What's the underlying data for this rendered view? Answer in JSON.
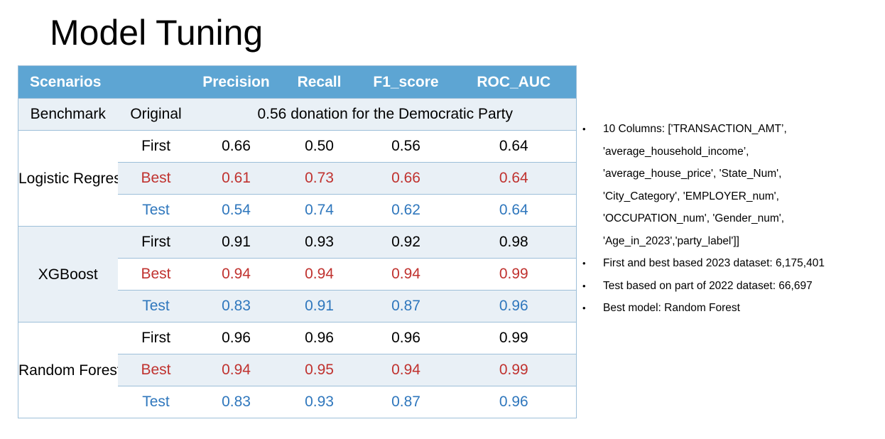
{
  "title": "Model Tuning",
  "table": {
    "headers": [
      "Scenarios",
      "",
      "Precision",
      "Recall",
      "F1_score",
      "ROC_AUC"
    ],
    "benchmark": {
      "label": "Benchmark",
      "sub": "Original",
      "text": "0.56 donation for the Democratic Party"
    },
    "groups": [
      {
        "name": "Logistic Regression",
        "rows": [
          {
            "label": "First",
            "precision": "0.66",
            "recall": "0.50",
            "f1": "0.56",
            "roc": "0.64"
          },
          {
            "label": "Best",
            "precision": "0.61",
            "recall": "0.73",
            "f1": "0.66",
            "roc": "0.64"
          },
          {
            "label": "Test",
            "precision": "0.54",
            "recall": "0.74",
            "f1": "0.62",
            "roc": "0.64"
          }
        ]
      },
      {
        "name": "XGBoost",
        "rows": [
          {
            "label": "First",
            "precision": "0.91",
            "recall": "0.93",
            "f1": "0.92",
            "roc": "0.98"
          },
          {
            "label": "Best",
            "precision": "0.94",
            "recall": "0.94",
            "f1": "0.94",
            "roc": "0.99"
          },
          {
            "label": "Test",
            "precision": "0.83",
            "recall": "0.91",
            "f1": "0.87",
            "roc": "0.96"
          }
        ]
      },
      {
        "name": "Random Forest",
        "rows": [
          {
            "label": "First",
            "precision": "0.96",
            "recall": "0.96",
            "f1": "0.96",
            "roc": "0.99"
          },
          {
            "label": "Best",
            "precision": "0.94",
            "recall": "0.95",
            "f1": "0.94",
            "roc": "0.99"
          },
          {
            "label": "Test",
            "precision": "0.83",
            "recall": "0.93",
            "f1": "0.87",
            "roc": "0.96"
          }
        ]
      }
    ]
  },
  "notes": {
    "bullet": "•",
    "lines": [
      {
        "bullet": true,
        "text": "10 Columns: ['TRANSACTION_AMT’,"
      },
      {
        "bullet": false,
        "text": "'average_household_income’,"
      },
      {
        "bullet": false,
        "text": "'average_house_price', 'State_Num',"
      },
      {
        "bullet": false,
        "text": "'City_Category', 'EMPLOYER_num',"
      },
      {
        "bullet": false,
        "text": "'OCCUPATION_num', 'Gender_num',"
      },
      {
        "bullet": false,
        "text": "'Age_in_2023','party_label']]"
      },
      {
        "bullet": true,
        "text": "First and best based 2023 dataset: 6,175,401"
      },
      {
        "bullet": true,
        "text": "Test based on part of 2022 dataset: 66,697"
      },
      {
        "bullet": true,
        "text": "Best model: Random Forest"
      }
    ]
  },
  "colors": {
    "header_bg": "#5da5d3",
    "band_bg": "#e9f0f6",
    "best": "#c0322f",
    "test": "#2f77bd"
  }
}
